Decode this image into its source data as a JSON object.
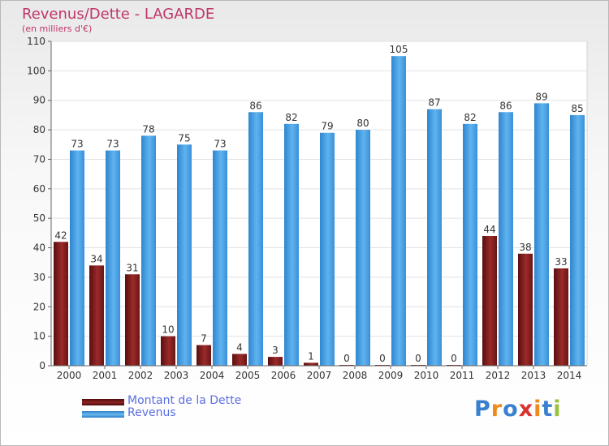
{
  "title": "Revenus/Dette - LAGARDE",
  "subtitle": "(en milliers d'€)",
  "logo": {
    "letters": [
      "P",
      "r",
      "o",
      "x",
      "i",
      "t",
      "i"
    ],
    "colors": [
      "#3a7fd0",
      "#f08a1c",
      "#3a7fd0",
      "#d8322f",
      "#f08a1c",
      "#3a7fd0",
      "#9ac23c"
    ]
  },
  "legend": [
    {
      "label": "Montant de la Dette",
      "color": "#7a1c1c"
    },
    {
      "label": "Revenus",
      "color": "#4da3e3"
    }
  ],
  "chart_data": {
    "type": "bar",
    "categories": [
      "2000",
      "2001",
      "2002",
      "2003",
      "2004",
      "2005",
      "2006",
      "2007",
      "2008",
      "2009",
      "2010",
      "2011",
      "2012",
      "2013",
      "2014"
    ],
    "series": [
      {
        "name": "Montant de la Dette",
        "color": "#7a1c1c",
        "values": [
          42,
          34,
          31,
          10,
          7,
          4,
          3,
          1,
          0,
          0,
          0,
          0,
          44,
          38,
          33
        ]
      },
      {
        "name": "Revenus",
        "color": "#4da3e3",
        "values": [
          73,
          73,
          78,
          75,
          73,
          86,
          82,
          79,
          80,
          105,
          87,
          82,
          86,
          89,
          85
        ]
      }
    ],
    "ylim": [
      0,
      110
    ],
    "yticks": [
      0,
      10,
      20,
      30,
      40,
      50,
      60,
      70,
      80,
      90,
      100,
      110
    ],
    "grid": true,
    "legend_position": "bottom-left"
  }
}
